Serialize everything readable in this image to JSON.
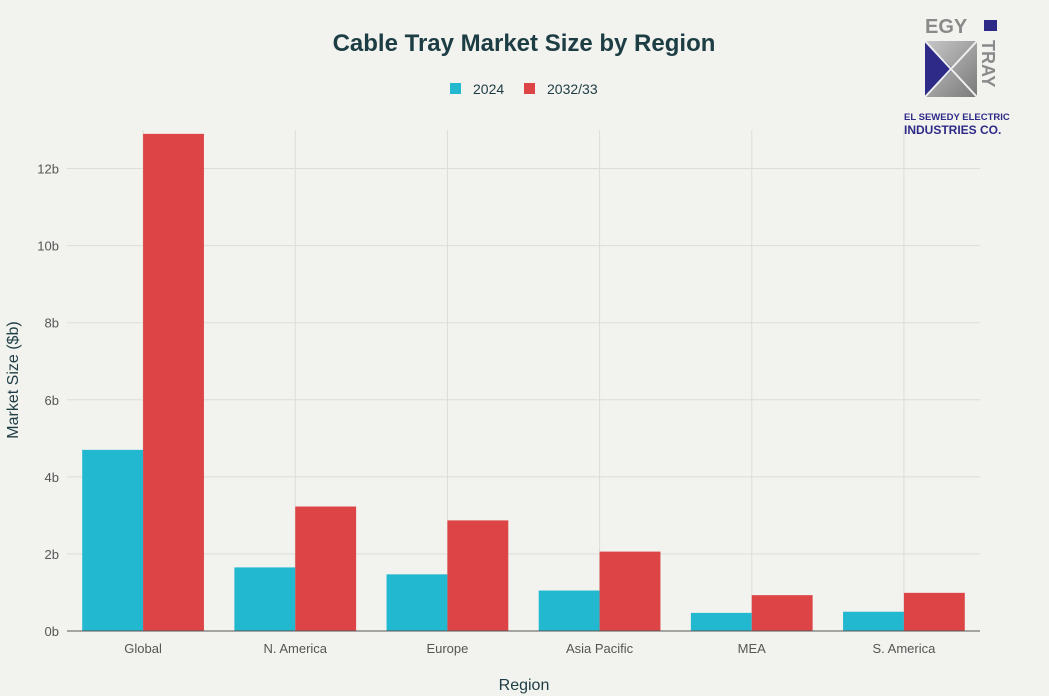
{
  "chart_data": {
    "type": "bar",
    "title": "Cable Tray Market Size by Region",
    "xlabel": "Region",
    "ylabel": "Market Size ($b)",
    "categories": [
      "Global",
      "N. America",
      "Europe",
      "Asia Pacific",
      "MEA",
      "S. America"
    ],
    "series": [
      {
        "name": "2024",
        "color": "#22b8cf",
        "values": [
          4.7,
          1.65,
          1.47,
          1.05,
          0.47,
          0.5
        ]
      },
      {
        "name": "2032/33",
        "color": "#dc4446",
        "values": [
          12.9,
          3.23,
          2.87,
          2.06,
          0.93,
          0.99
        ]
      }
    ],
    "ylim": [
      0,
      13
    ],
    "yticks": [
      0,
      2,
      4,
      6,
      8,
      10,
      12
    ],
    "ytick_labels": [
      "0b",
      "2b",
      "4b",
      "6b",
      "8b",
      "10b",
      "12b"
    ],
    "grid": true,
    "legend_position": "top-center"
  },
  "logo": {
    "top_text": "EGY",
    "side_text": "TRAY",
    "company_line1": "EL SEWEDY ELECTRIC",
    "company_line2": "INDUSTRIES CO."
  }
}
